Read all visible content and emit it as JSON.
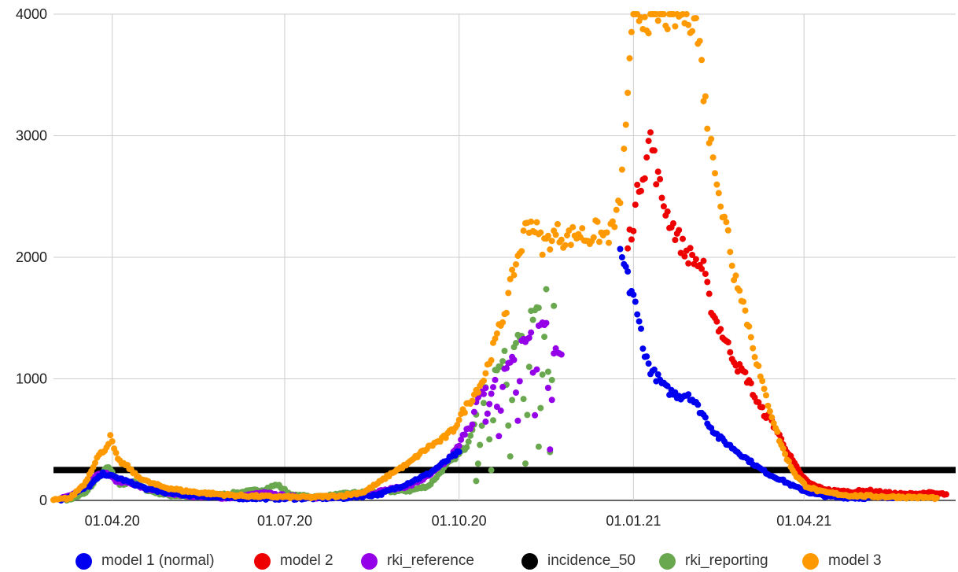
{
  "chart_data": {
    "type": "scatter",
    "title": "",
    "xlabel": "",
    "ylabel": "",
    "x_range": [
      "2020-03-01",
      "2021-06-20"
    ],
    "ylim": [
      0,
      4000
    ],
    "y_ticks": [
      0,
      1000,
      2000,
      3000,
      4000
    ],
    "x_ticks": [
      {
        "date": "2020-04-01",
        "label": "01.04.20"
      },
      {
        "date": "2020-07-01",
        "label": "01.07.20"
      },
      {
        "date": "2020-10-01",
        "label": "01.10.20"
      },
      {
        "date": "2021-01-01",
        "label": "01.01.21"
      },
      {
        "date": "2021-04-01",
        "label": "01.04.21"
      }
    ],
    "grid": true,
    "legend_position": "bottom",
    "series": [
      {
        "name": "model 1 (normal)",
        "color": "#0000f0",
        "points": [
          [
            "2020-03-05",
            0
          ],
          [
            "2020-03-20",
            120
          ],
          [
            "2020-03-27",
            220
          ],
          [
            "2020-04-03",
            190
          ],
          [
            "2020-04-10",
            150
          ],
          [
            "2020-04-20",
            90
          ],
          [
            "2020-05-05",
            50
          ],
          [
            "2020-06-01",
            20
          ],
          [
            "2020-07-01",
            15
          ],
          [
            "2020-08-01",
            20
          ],
          [
            "2020-08-20",
            50
          ],
          [
            "2020-09-01",
            120
          ],
          [
            "2020-09-15",
            220
          ],
          [
            "2020-10-01",
            400
          ],
          [
            "2020-12-25",
            2000
          ],
          [
            "2020-12-28",
            1900
          ],
          [
            "2020-12-30",
            1750
          ],
          [
            "2021-01-01",
            1700
          ],
          [
            "2021-01-03",
            1500
          ],
          [
            "2021-01-05",
            1400
          ],
          [
            "2021-01-07",
            1200
          ],
          [
            "2021-01-10",
            1080
          ],
          [
            "2021-01-14",
            1000
          ],
          [
            "2021-01-18",
            920
          ],
          [
            "2021-01-22",
            880
          ],
          [
            "2021-01-26",
            860
          ],
          [
            "2021-01-30",
            880
          ],
          [
            "2021-02-03",
            790
          ],
          [
            "2021-02-07",
            700
          ],
          [
            "2021-02-11",
            600
          ],
          [
            "2021-02-15",
            520
          ],
          [
            "2021-02-20",
            460
          ],
          [
            "2021-02-25",
            400
          ],
          [
            "2021-03-02",
            340
          ],
          [
            "2021-03-08",
            270
          ],
          [
            "2021-03-14",
            210
          ],
          [
            "2021-03-20",
            170
          ],
          [
            "2021-03-26",
            120
          ],
          [
            "2021-04-01",
            80
          ],
          [
            "2021-04-07",
            50
          ],
          [
            "2021-04-15",
            30
          ],
          [
            "2021-05-01",
            20
          ],
          [
            "2021-05-20",
            30
          ],
          [
            "2021-06-10",
            40
          ]
        ]
      },
      {
        "name": "model 2",
        "color": "#ee0000",
        "points": [
          [
            "2020-12-29",
            2100
          ],
          [
            "2021-01-01",
            2300
          ],
          [
            "2021-01-04",
            2600
          ],
          [
            "2021-01-07",
            2750
          ],
          [
            "2021-01-10",
            3000
          ],
          [
            "2021-01-13",
            2700
          ],
          [
            "2021-01-16",
            2500
          ],
          [
            "2021-01-19",
            2350
          ],
          [
            "2021-01-22",
            2250
          ],
          [
            "2021-01-25",
            2150
          ],
          [
            "2021-01-28",
            2050
          ],
          [
            "2021-02-01",
            2000
          ],
          [
            "2021-02-04",
            1950
          ],
          [
            "2021-02-07",
            1900
          ],
          [
            "2021-02-10",
            1650
          ],
          [
            "2021-02-13",
            1500
          ],
          [
            "2021-02-16",
            1400
          ],
          [
            "2021-02-19",
            1300
          ],
          [
            "2021-02-22",
            1200
          ],
          [
            "2021-02-25",
            1100
          ],
          [
            "2021-02-28",
            1050
          ],
          [
            "2021-03-03",
            980
          ],
          [
            "2021-03-06",
            850
          ],
          [
            "2021-03-09",
            760
          ],
          [
            "2021-03-12",
            700
          ],
          [
            "2021-03-15",
            650
          ],
          [
            "2021-03-18",
            560
          ],
          [
            "2021-03-21",
            470
          ],
          [
            "2021-03-24",
            380
          ],
          [
            "2021-03-27",
            300
          ],
          [
            "2021-03-30",
            220
          ],
          [
            "2021-04-03",
            150
          ],
          [
            "2021-04-08",
            110
          ],
          [
            "2021-04-15",
            80
          ],
          [
            "2021-04-25",
            70
          ],
          [
            "2021-05-05",
            80
          ],
          [
            "2021-05-15",
            60
          ],
          [
            "2021-05-25",
            50
          ],
          [
            "2021-06-05",
            60
          ],
          [
            "2021-06-15",
            50
          ]
        ]
      },
      {
        "name": "rki_reference",
        "color": "#9400e8",
        "points": [
          [
            "2020-03-05",
            10
          ],
          [
            "2020-03-15",
            80
          ],
          [
            "2020-03-22",
            190
          ],
          [
            "2020-03-28",
            230
          ],
          [
            "2020-04-03",
            160
          ],
          [
            "2020-04-10",
            140
          ],
          [
            "2020-04-18",
            100
          ],
          [
            "2020-04-28",
            70
          ],
          [
            "2020-05-10",
            40
          ],
          [
            "2020-06-01",
            20
          ],
          [
            "2020-06-20",
            60
          ],
          [
            "2020-07-05",
            30
          ],
          [
            "2020-07-25",
            20
          ],
          [
            "2020-08-10",
            40
          ],
          [
            "2020-08-25",
            90
          ],
          [
            "2020-09-05",
            120
          ],
          [
            "2020-09-15",
            200
          ],
          [
            "2020-09-25",
            330
          ],
          [
            "2020-10-01",
            450
          ],
          [
            "2020-10-05",
            600
          ],
          [
            "2020-10-10",
            800
          ],
          [
            "2020-10-15",
            920
          ],
          [
            "2020-10-20",
            1000
          ],
          [
            "2020-10-25",
            1100
          ],
          [
            "2020-10-30",
            1150
          ],
          [
            "2020-11-03",
            1300
          ],
          [
            "2020-11-08",
            1400
          ],
          [
            "2020-11-12",
            1450
          ],
          [
            "2020-11-16",
            1500
          ],
          [
            "2020-11-20",
            1250
          ],
          [
            "2020-11-24",
            1200
          ],
          [
            "2020-10-08",
            620
          ],
          [
            "2020-10-15",
            650
          ],
          [
            "2020-10-22",
            540
          ],
          [
            "2020-11-01",
            650
          ],
          [
            "2020-11-10",
            680
          ],
          [
            "2020-11-18",
            420
          ]
        ]
      },
      {
        "name": "incidence_50",
        "color": "#000000",
        "line": true,
        "points": [
          [
            "2020-03-01",
            250
          ],
          [
            "2021-06-20",
            250
          ]
        ]
      },
      {
        "name": "rki_reporting",
        "color": "#6aa84f",
        "points": [
          [
            "2020-03-08",
            0
          ],
          [
            "2020-03-18",
            60
          ],
          [
            "2020-03-25",
            200
          ],
          [
            "2020-03-30",
            280
          ],
          [
            "2020-04-05",
            120
          ],
          [
            "2020-04-12",
            160
          ],
          [
            "2020-04-20",
            80
          ],
          [
            "2020-05-01",
            40
          ],
          [
            "2020-05-20",
            30
          ],
          [
            "2020-06-20",
            90
          ],
          [
            "2020-06-27",
            130
          ],
          [
            "2020-07-05",
            40
          ],
          [
            "2020-07-20",
            30
          ],
          [
            "2020-08-05",
            60
          ],
          [
            "2020-08-20",
            70
          ],
          [
            "2020-09-05",
            80
          ],
          [
            "2020-09-15",
            120
          ],
          [
            "2020-09-25",
            300
          ],
          [
            "2020-10-01",
            380
          ],
          [
            "2020-10-05",
            450
          ],
          [
            "2020-10-10",
            700
          ],
          [
            "2020-10-15",
            950
          ],
          [
            "2020-10-20",
            1050
          ],
          [
            "2020-10-25",
            1200
          ],
          [
            "2020-10-30",
            1300
          ],
          [
            "2020-11-03",
            1400
          ],
          [
            "2020-11-08",
            1500
          ],
          [
            "2020-11-12",
            1650
          ],
          [
            "2020-11-16",
            1680
          ],
          [
            "2020-11-20",
            1600
          ],
          [
            "2020-10-10",
            150
          ],
          [
            "2020-10-18",
            250
          ],
          [
            "2020-10-28",
            350
          ],
          [
            "2020-11-05",
            300
          ],
          [
            "2020-11-12",
            460
          ],
          [
            "2020-11-18",
            390
          ]
        ]
      },
      {
        "name": "model 3",
        "color": "#ff9900",
        "points": [
          [
            "2020-03-01",
            0
          ],
          [
            "2020-03-10",
            20
          ],
          [
            "2020-03-18",
            150
          ],
          [
            "2020-03-24",
            350
          ],
          [
            "2020-03-29",
            440
          ],
          [
            "2020-03-31",
            520
          ],
          [
            "2020-04-04",
            330
          ],
          [
            "2020-04-09",
            280
          ],
          [
            "2020-04-14",
            200
          ],
          [
            "2020-04-20",
            150
          ],
          [
            "2020-04-28",
            110
          ],
          [
            "2020-05-08",
            80
          ],
          [
            "2020-05-20",
            60
          ],
          [
            "2020-06-05",
            40
          ],
          [
            "2020-06-25",
            30
          ],
          [
            "2020-07-15",
            25
          ],
          [
            "2020-08-01",
            40
          ],
          [
            "2020-08-12",
            70
          ],
          [
            "2020-08-20",
            150
          ],
          [
            "2020-08-28",
            240
          ],
          [
            "2020-09-04",
            300
          ],
          [
            "2020-09-10",
            380
          ],
          [
            "2020-09-16",
            450
          ],
          [
            "2020-09-22",
            500
          ],
          [
            "2020-09-28",
            580
          ],
          [
            "2020-10-02",
            700
          ],
          [
            "2020-10-06",
            800
          ],
          [
            "2020-10-10",
            900
          ],
          [
            "2020-10-14",
            1000
          ],
          [
            "2020-10-18",
            1200
          ],
          [
            "2020-10-22",
            1400
          ],
          [
            "2020-10-26",
            1600
          ],
          [
            "2020-10-30",
            1900
          ],
          [
            "2020-11-03",
            2100
          ],
          [
            "2020-11-06",
            2300
          ],
          [
            "2020-11-10",
            2250
          ],
          [
            "2020-11-14",
            2100
          ],
          [
            "2020-11-18",
            2150
          ],
          [
            "2020-11-22",
            2200
          ],
          [
            "2020-11-26",
            2150
          ],
          [
            "2020-11-30",
            2180
          ],
          [
            "2020-12-04",
            2200
          ],
          [
            "2020-12-08",
            2150
          ],
          [
            "2020-12-12",
            2220
          ],
          [
            "2020-12-16",
            2170
          ],
          [
            "2020-12-20",
            2200
          ],
          [
            "2020-12-24",
            2380
          ],
          [
            "2020-12-27",
            2820
          ],
          [
            "2020-12-29",
            3400
          ],
          [
            "2020-12-31",
            3720
          ],
          [
            "2021-01-01",
            4000
          ],
          [
            "2021-02-02",
            4000
          ],
          [
            "2021-02-05",
            3720
          ],
          [
            "2021-02-08",
            3250
          ],
          [
            "2021-02-11",
            2900
          ],
          [
            "2021-02-14",
            2700
          ],
          [
            "2021-02-17",
            2350
          ],
          [
            "2021-02-20",
            2200
          ],
          [
            "2021-02-23",
            1850
          ],
          [
            "2021-02-26",
            1780
          ],
          [
            "2021-03-01",
            1550
          ],
          [
            "2021-03-04",
            1350
          ],
          [
            "2021-03-07",
            1150
          ],
          [
            "2021-03-10",
            950
          ],
          [
            "2021-03-13",
            800
          ],
          [
            "2021-03-16",
            650
          ],
          [
            "2021-03-19",
            500
          ],
          [
            "2021-03-22",
            380
          ],
          [
            "2021-03-25",
            280
          ],
          [
            "2021-03-28",
            200
          ],
          [
            "2021-04-02",
            120
          ],
          [
            "2021-04-10",
            70
          ],
          [
            "2021-04-25",
            40
          ],
          [
            "2021-05-15",
            30
          ],
          [
            "2021-06-10",
            20
          ]
        ]
      }
    ]
  }
}
